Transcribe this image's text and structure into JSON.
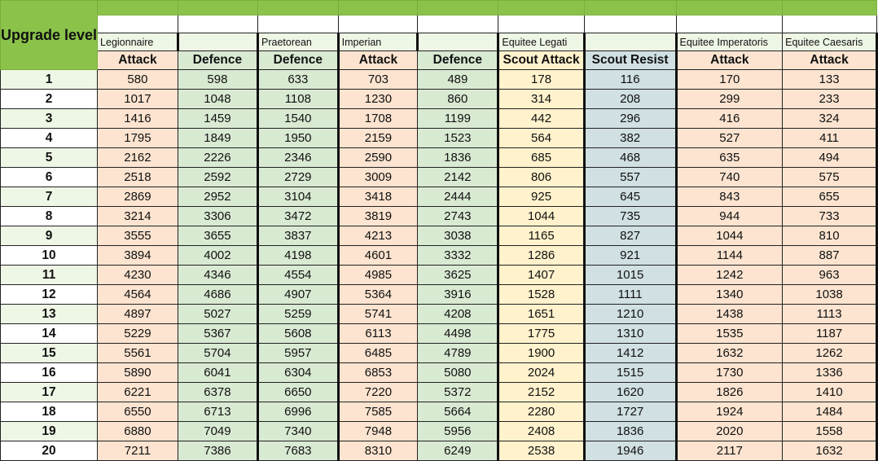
{
  "corner_label": "Upgrade level",
  "colors": {
    "header_green": "#8bc34a",
    "attack": "#fce4d0",
    "defence": "#d9ead3",
    "scout_attack": "#fff2cc",
    "scout_resist": "#d0e0e3",
    "unit_label_bg": "#eef6e6"
  },
  "columns": [
    {
      "unit": "Legionnaire",
      "stat": "Attack",
      "type": "attack"
    },
    {
      "unit": "",
      "stat": "Defence",
      "type": "defence"
    },
    {
      "unit": "Praetorean",
      "stat": "Defence",
      "type": "defence"
    },
    {
      "unit": "Imperian",
      "stat": "Attack",
      "type": "attack"
    },
    {
      "unit": "",
      "stat": "Defence",
      "type": "defence"
    },
    {
      "unit": "Equitee Legati",
      "stat": "Scout Attack",
      "type": "scout_attack"
    },
    {
      "unit": "",
      "stat": "Scout Resist",
      "type": "scout_resist"
    },
    {
      "unit": "Equitee Imperatoris",
      "stat": "Attack",
      "type": "attack"
    },
    {
      "unit": "Equitee Caesaris",
      "stat": "Attack",
      "type": "attack"
    }
  ],
  "rows": [
    {
      "level": "1",
      "values": [
        "580",
        "598",
        "633",
        "703",
        "489",
        "178",
        "116",
        "170",
        "133"
      ]
    },
    {
      "level": "2",
      "values": [
        "1017",
        "1048",
        "1108",
        "1230",
        "860",
        "314",
        "208",
        "299",
        "233"
      ]
    },
    {
      "level": "3",
      "values": [
        "1416",
        "1459",
        "1540",
        "1708",
        "1199",
        "442",
        "296",
        "416",
        "324"
      ]
    },
    {
      "level": "4",
      "values": [
        "1795",
        "1849",
        "1950",
        "2159",
        "1523",
        "564",
        "382",
        "527",
        "411"
      ]
    },
    {
      "level": "5",
      "values": [
        "2162",
        "2226",
        "2346",
        "2590",
        "1836",
        "685",
        "468",
        "635",
        "494"
      ]
    },
    {
      "level": "6",
      "values": [
        "2518",
        "2592",
        "2729",
        "3009",
        "2142",
        "806",
        "557",
        "740",
        "575"
      ]
    },
    {
      "level": "7",
      "values": [
        "2869",
        "2952",
        "3104",
        "3418",
        "2444",
        "925",
        "645",
        "843",
        "655"
      ]
    },
    {
      "level": "8",
      "values": [
        "3214",
        "3306",
        "3472",
        "3819",
        "2743",
        "1044",
        "735",
        "944",
        "733"
      ]
    },
    {
      "level": "9",
      "values": [
        "3555",
        "3655",
        "3837",
        "4213",
        "3038",
        "1165",
        "827",
        "1044",
        "810"
      ]
    },
    {
      "level": "10",
      "values": [
        "3894",
        "4002",
        "4198",
        "4601",
        "3332",
        "1286",
        "921",
        "1144",
        "887"
      ]
    },
    {
      "level": "11",
      "values": [
        "4230",
        "4346",
        "4554",
        "4985",
        "3625",
        "1407",
        "1015",
        "1242",
        "963"
      ]
    },
    {
      "level": "12",
      "values": [
        "4564",
        "4686",
        "4907",
        "5364",
        "3916",
        "1528",
        "1111",
        "1340",
        "1038"
      ]
    },
    {
      "level": "13",
      "values": [
        "4897",
        "5027",
        "5259",
        "5741",
        "4208",
        "1651",
        "1210",
        "1438",
        "1113"
      ]
    },
    {
      "level": "14",
      "values": [
        "5229",
        "5367",
        "5608",
        "6113",
        "4498",
        "1775",
        "1310",
        "1535",
        "1187"
      ]
    },
    {
      "level": "15",
      "values": [
        "5561",
        "5704",
        "5957",
        "6485",
        "4789",
        "1900",
        "1412",
        "1632",
        "1262"
      ]
    },
    {
      "level": "16",
      "values": [
        "5890",
        "6041",
        "6304",
        "6853",
        "5080",
        "2024",
        "1515",
        "1730",
        "1336"
      ]
    },
    {
      "level": "17",
      "values": [
        "6221",
        "6378",
        "6650",
        "7220",
        "5372",
        "2152",
        "1620",
        "1826",
        "1410"
      ]
    },
    {
      "level": "18",
      "values": [
        "6550",
        "6713",
        "6996",
        "7585",
        "5664",
        "2280",
        "1727",
        "1924",
        "1484"
      ]
    },
    {
      "level": "19",
      "values": [
        "6880",
        "7049",
        "7340",
        "7948",
        "5956",
        "2408",
        "1836",
        "2020",
        "1558"
      ]
    },
    {
      "level": "20",
      "values": [
        "7211",
        "7386",
        "7683",
        "8310",
        "6249",
        "2538",
        "1946",
        "2117",
        "1632"
      ]
    }
  ]
}
